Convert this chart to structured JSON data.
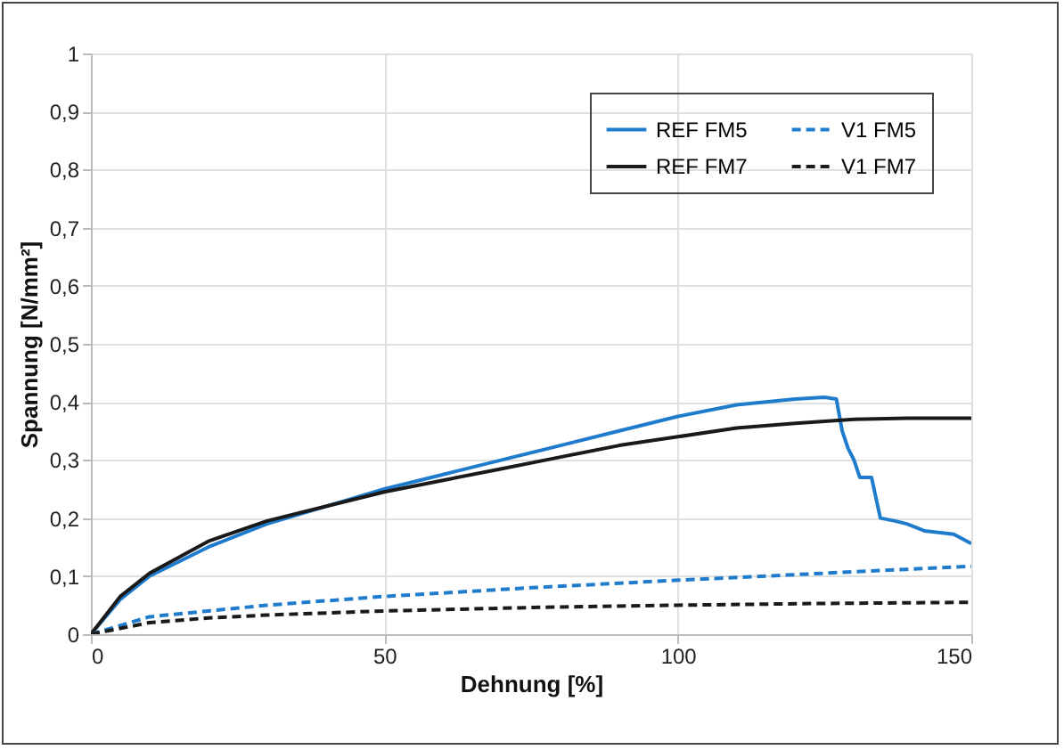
{
  "chart_data": {
    "type": "line",
    "xlabel": "Dehnung [%]",
    "ylabel": "Spannung [N/mm²]",
    "xlim": [
      0,
      150
    ],
    "xticks": [
      0,
      50,
      100,
      150
    ],
    "ylim": [
      0,
      1
    ],
    "yticks": [
      {
        "value": 0,
        "label": "0"
      },
      {
        "value": 0.1,
        "label": "0,1"
      },
      {
        "value": 0.2,
        "label": "0,2"
      },
      {
        "value": 0.3,
        "label": "0,3"
      },
      {
        "value": 0.4,
        "label": "0,4"
      },
      {
        "value": 0.5,
        "label": "0,5"
      },
      {
        "value": 0.6,
        "label": "0,6"
      },
      {
        "value": 0.7,
        "label": "0,7"
      },
      {
        "value": 0.8,
        "label": "0,8"
      },
      {
        "value": 0.9,
        "label": "0,9"
      },
      {
        "value": 1,
        "label": "1"
      }
    ],
    "grid": true,
    "legend": "top right",
    "marker": "none",
    "series": [
      {
        "name": "REF FM5",
        "color": "#1f7ccc",
        "line_style": "solid",
        "x": [
          0,
          5,
          10,
          20,
          30,
          40,
          50,
          60,
          70,
          80,
          90,
          100,
          110,
          115,
          120,
          125,
          127,
          128,
          129,
          130,
          131,
          133,
          134.5,
          137,
          139,
          142,
          147,
          150
        ],
        "values": [
          0,
          0.06,
          0.1,
          0.15,
          0.19,
          0.22,
          0.25,
          0.275,
          0.3,
          0.325,
          0.35,
          0.375,
          0.395,
          0.4,
          0.405,
          0.408,
          0.405,
          0.35,
          0.32,
          0.3,
          0.27,
          0.27,
          0.2,
          0.195,
          0.19,
          0.178,
          0.172,
          0.156
        ]
      },
      {
        "name": "REF FM7",
        "color": "#1a1a1a",
        "line_style": "solid",
        "x": [
          0,
          5,
          10,
          20,
          30,
          40,
          50,
          60,
          70,
          80,
          90,
          100,
          110,
          120,
          130,
          140,
          150
        ],
        "values": [
          0,
          0.065,
          0.105,
          0.16,
          0.195,
          0.22,
          0.245,
          0.265,
          0.285,
          0.305,
          0.325,
          0.34,
          0.355,
          0.363,
          0.37,
          0.372,
          0.372
        ]
      },
      {
        "name": "V1 FM5",
        "color": "#1f7ccc",
        "line_style": "dashed",
        "x": [
          0,
          10,
          20,
          30,
          50,
          75,
          100,
          125,
          150
        ],
        "values": [
          0,
          0.03,
          0.04,
          0.05,
          0.065,
          0.08,
          0.093,
          0.105,
          0.117
        ]
      },
      {
        "name": "V1 FM7",
        "color": "#1a1a1a",
        "line_style": "dashed",
        "x": [
          0,
          10,
          20,
          30,
          50,
          75,
          100,
          125,
          150
        ],
        "values": [
          0,
          0.02,
          0.028,
          0.033,
          0.04,
          0.046,
          0.05,
          0.053,
          0.055
        ]
      }
    ]
  }
}
